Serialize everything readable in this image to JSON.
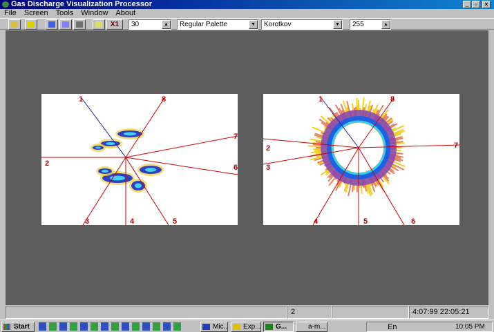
{
  "window": {
    "title": "Gas Discharge Visualization Processor"
  },
  "menu": [
    "File",
    "Screen",
    "Tools",
    "Window",
    "About"
  ],
  "toolbar": {
    "clear_button": "X1",
    "step": "30",
    "palette": "Regular Palette",
    "method": "Korotkov",
    "level": "255"
  },
  "left_image": {
    "sector_labels": [
      "1",
      "2",
      "3",
      "4",
      "5",
      "6",
      "7",
      "8"
    ]
  },
  "right_image": {
    "sector_labels": [
      "1",
      "2",
      "3",
      "4",
      "5",
      "6",
      "7",
      "8"
    ]
  },
  "status_bar": {
    "frame": "2",
    "timestamp": "4:07:99  22:05:21"
  },
  "taskbar": {
    "start": "Start",
    "tasks": [
      "Mic...",
      "Exp...",
      "G...",
      "a-m..."
    ],
    "language": "En",
    "clock": "10:05 PM"
  }
}
